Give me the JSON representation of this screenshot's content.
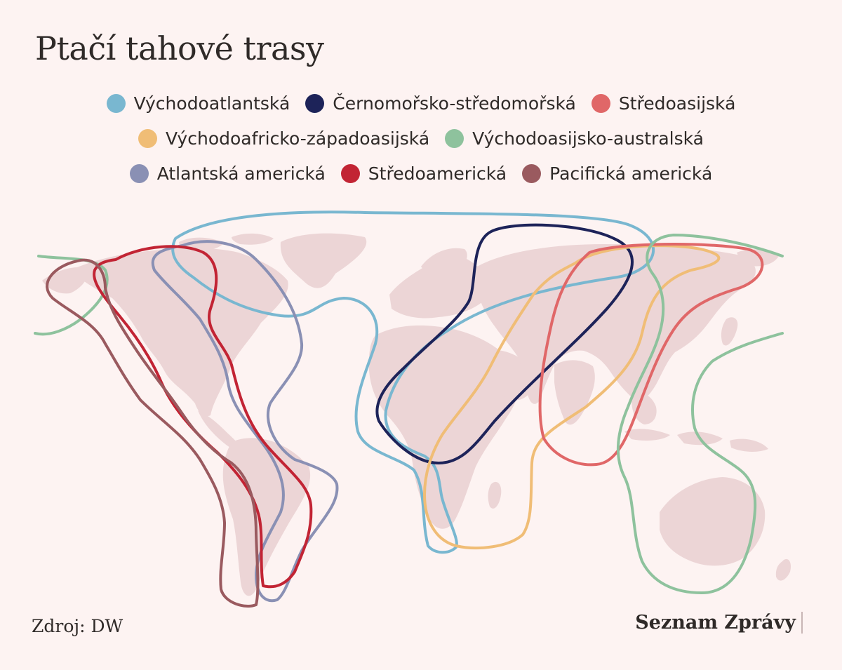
{
  "title": "Ptačí tahové trasy",
  "legend": [
    {
      "label": "Východoatlantská",
      "color": "#79b7d0"
    },
    {
      "label": "Černomořsko-středomořská",
      "color": "#1d2359"
    },
    {
      "label": "Středoasijská",
      "color": "#e06768"
    },
    {
      "label": "Východoafricko-západoasijská",
      "color": "#f0bd76"
    },
    {
      "label": "Východoasijsko-australská",
      "color": "#8ec29d"
    },
    {
      "label": "Atlantská americká",
      "color": "#8a90b4"
    },
    {
      "label": "Středoamerická",
      "color": "#c22434"
    },
    {
      "label": "Pacifická americká",
      "color": "#9a5a5f"
    }
  ],
  "land_color": "#ecd5d6",
  "background_color": "#fdf3f2",
  "source": "Zdroj: DW",
  "brand": "Seznam Zprávy"
}
